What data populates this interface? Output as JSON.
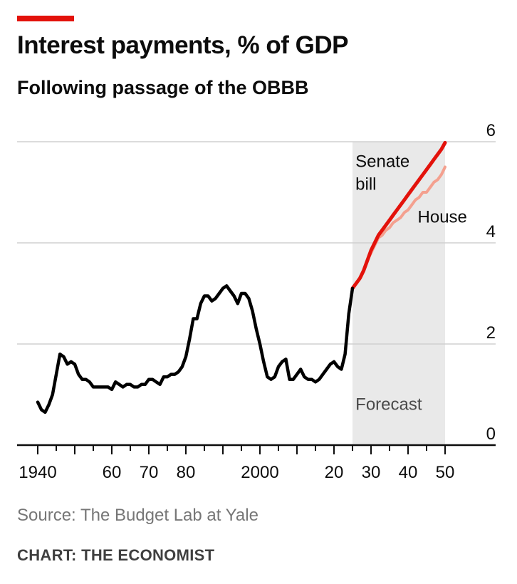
{
  "header": {
    "title": "Interest payments, % of GDP",
    "subtitle": "Following passage of the OBBB"
  },
  "footer": {
    "source": "Source: The Budget Lab at Yale",
    "credit": "CHART: THE ECONOMIST"
  },
  "colors": {
    "accent": "#e3120b",
    "history": "#000000",
    "senate": "#e3120b",
    "house": "#f4a08f",
    "forecast_band": "#e9e9e9",
    "grid": "#d0d0d0"
  },
  "chart_data": {
    "type": "line",
    "title": "Interest payments, % of GDP",
    "subtitle": "Following passage of the OBBB",
    "xlim": [
      1940,
      2050
    ],
    "ylim": [
      0,
      6
    ],
    "yticks": [
      0,
      2,
      4,
      6
    ],
    "ytick_labels": [
      "0",
      "2",
      "4",
      "6"
    ],
    "xticks": [
      1940,
      1960,
      1970,
      1980,
      2000,
      2020,
      2030,
      2040,
      2050
    ],
    "xtick_labels": [
      "1940",
      "60",
      "70",
      "80",
      "2000",
      "20",
      "30",
      "40",
      "50"
    ],
    "y_axis_side": "right",
    "grid": true,
    "forecast_band": {
      "label": "Forecast",
      "from": 2025,
      "to": 2050
    },
    "series": [
      {
        "name": "",
        "kind": "history",
        "x": [
          1940,
          1941,
          1942,
          1943,
          1944,
          1945,
          1946,
          1947,
          1948,
          1949,
          1950,
          1951,
          1952,
          1953,
          1954,
          1955,
          1956,
          1957,
          1958,
          1959,
          1960,
          1961,
          1962,
          1963,
          1964,
          1965,
          1966,
          1967,
          1968,
          1969,
          1970,
          1971,
          1972,
          1973,
          1974,
          1975,
          1976,
          1977,
          1978,
          1979,
          1980,
          1981,
          1982,
          1983,
          1984,
          1985,
          1986,
          1987,
          1988,
          1989,
          1990,
          1991,
          1992,
          1993,
          1994,
          1995,
          1996,
          1997,
          1998,
          1999,
          2000,
          2001,
          2002,
          2003,
          2004,
          2005,
          2006,
          2007,
          2008,
          2009,
          2010,
          2011,
          2012,
          2013,
          2014,
          2015,
          2016,
          2017,
          2018,
          2019,
          2020,
          2021,
          2022,
          2023,
          2024,
          2025
        ],
        "values": [
          0.85,
          0.7,
          0.65,
          0.8,
          1.0,
          1.4,
          1.8,
          1.75,
          1.6,
          1.65,
          1.6,
          1.4,
          1.3,
          1.3,
          1.25,
          1.15,
          1.15,
          1.15,
          1.15,
          1.15,
          1.1,
          1.25,
          1.2,
          1.15,
          1.2,
          1.2,
          1.15,
          1.15,
          1.2,
          1.2,
          1.3,
          1.3,
          1.25,
          1.2,
          1.35,
          1.35,
          1.4,
          1.4,
          1.45,
          1.55,
          1.75,
          2.1,
          2.5,
          2.5,
          2.8,
          2.95,
          2.95,
          2.85,
          2.9,
          3.0,
          3.1,
          3.15,
          3.05,
          2.95,
          2.8,
          3.0,
          3.0,
          2.9,
          2.65,
          2.3,
          2.0,
          1.65,
          1.35,
          1.3,
          1.35,
          1.55,
          1.65,
          1.7,
          1.3,
          1.3,
          1.4,
          1.5,
          1.35,
          1.3,
          1.3,
          1.25,
          1.3,
          1.4,
          1.5,
          1.6,
          1.65,
          1.55,
          1.5,
          1.8,
          2.6,
          3.1
        ]
      },
      {
        "name": "Senate bill",
        "kind": "senate",
        "x": [
          2025,
          2026,
          2027,
          2028,
          2029,
          2030,
          2031,
          2032,
          2033,
          2034,
          2035,
          2036,
          2037,
          2038,
          2039,
          2040,
          2041,
          2042,
          2043,
          2044,
          2045,
          2046,
          2047,
          2048,
          2049,
          2050
        ],
        "values": [
          3.1,
          3.2,
          3.3,
          3.45,
          3.65,
          3.85,
          4.0,
          4.15,
          4.25,
          4.35,
          4.45,
          4.55,
          4.65,
          4.75,
          4.85,
          4.95,
          5.05,
          5.15,
          5.25,
          5.35,
          5.45,
          5.55,
          5.65,
          5.75,
          5.85,
          5.98
        ]
      },
      {
        "name": "House",
        "kind": "house",
        "x": [
          2025,
          2026,
          2027,
          2028,
          2029,
          2030,
          2031,
          2032,
          2033,
          2034,
          2035,
          2036,
          2037,
          2038,
          2039,
          2040,
          2041,
          2042,
          2043,
          2044,
          2045,
          2046,
          2047,
          2048,
          2049,
          2050
        ],
        "values": [
          3.1,
          3.2,
          3.3,
          3.45,
          3.65,
          3.8,
          3.95,
          4.1,
          4.15,
          4.25,
          4.3,
          4.4,
          4.45,
          4.5,
          4.6,
          4.65,
          4.75,
          4.85,
          4.9,
          5.0,
          5.0,
          5.1,
          5.2,
          5.25,
          5.35,
          5.5
        ]
      }
    ],
    "annotations": [
      {
        "text": "Senate",
        "series": "Senate bill"
      },
      {
        "text": "bill",
        "series": "Senate bill"
      },
      {
        "text": "House",
        "series": "House"
      },
      {
        "text": "Forecast",
        "series": ""
      }
    ]
  }
}
